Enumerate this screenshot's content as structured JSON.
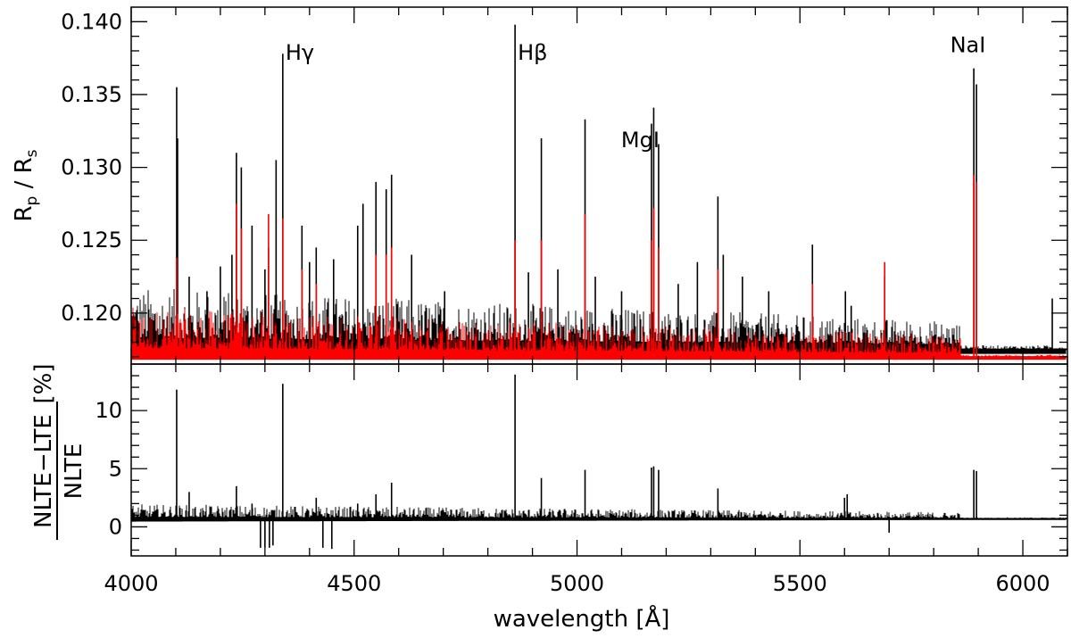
{
  "chart_data": [
    {
      "type": "line",
      "panel": "top",
      "ylabel": "R_p / R_s",
      "xlim": [
        4000,
        6100
      ],
      "ylim": [
        0.1165,
        0.141
      ],
      "x_ticks": [
        4000,
        4500,
        5000,
        5500,
        6000
      ],
      "y_ticks": [
        0.12,
        0.125,
        0.13,
        0.135,
        0.14
      ],
      "y_tick_labels": [
        "0.120",
        "0.125",
        "0.130",
        "0.135",
        "0.140"
      ],
      "colors": {
        "series_black": "#000000",
        "series_red": "#ff0000"
      },
      "baseline": {
        "black": 0.1175,
        "red": 0.117
      },
      "annotations": [
        {
          "text": "Hγ",
          "x": 4340,
          "y": 0.1385
        },
        {
          "text": "Hβ",
          "x": 4861,
          "y": 0.1385
        },
        {
          "text": "MgI",
          "x": 5183,
          "y": 0.1325
        },
        {
          "text": "NaI",
          "x": 5893,
          "y": 0.139
        }
      ],
      "series": [
        {
          "color": "black",
          "peaks": [
            [
              4102,
              0.1355
            ],
            [
              4104,
              0.132
            ],
            [
              4130,
              0.1225
            ],
            [
              4170,
              0.1215
            ],
            [
              4200,
              0.1232
            ],
            [
              4226,
              0.124
            ],
            [
              4236,
              0.131
            ],
            [
              4247,
              0.13
            ],
            [
              4271,
              0.126
            ],
            [
              4300,
              0.123
            ],
            [
              4308,
              0.1245
            ],
            [
              4325,
              0.1305
            ],
            [
              4340,
              0.1378
            ],
            [
              4383,
              0.126
            ],
            [
              4400,
              0.1235
            ],
            [
              4415,
              0.1245
            ],
            [
              4454,
              0.1237
            ],
            [
              4508,
              0.126
            ],
            [
              4520,
              0.1275
            ],
            [
              4549,
              0.129
            ],
            [
              4572,
              0.1285
            ],
            [
              4584,
              0.1295
            ],
            [
              4629,
              0.124
            ],
            [
              4703,
              0.1215
            ],
            [
              4861,
              0.1398
            ],
            [
              4891,
              0.1228
            ],
            [
              4920,
              0.132
            ],
            [
              4957,
              0.123
            ],
            [
              5018,
              0.1333
            ],
            [
              5041,
              0.1225
            ],
            [
              5100,
              0.1215
            ],
            [
              5167,
              0.133
            ],
            [
              5172,
              0.1341
            ],
            [
              5183,
              0.1316
            ],
            [
              5227,
              0.122
            ],
            [
              5270,
              0.1235
            ],
            [
              5316,
              0.128
            ],
            [
              5328,
              0.124
            ],
            [
              5371,
              0.1225
            ],
            [
              5430,
              0.1215
            ],
            [
              5528,
              0.1247
            ],
            [
              5602,
              0.1215
            ],
            [
              5615,
              0.1205
            ],
            [
              5690,
              0.1225
            ],
            [
              5890,
              0.1368
            ],
            [
              5896,
              0.1357
            ],
            [
              6066,
              0.121
            ]
          ]
        },
        {
          "color": "red",
          "peaks": [
            [
              4102,
              0.1238
            ],
            [
              4236,
              0.1275
            ],
            [
              4247,
              0.1258
            ],
            [
              4308,
              0.1268
            ],
            [
              4340,
              0.1265
            ],
            [
              4383,
              0.123
            ],
            [
              4415,
              0.122
            ],
            [
              4549,
              0.124
            ],
            [
              4572,
              0.124
            ],
            [
              4584,
              0.1245
            ],
            [
              4861,
              0.125
            ],
            [
              4920,
              0.125
            ],
            [
              5018,
              0.1268
            ],
            [
              5167,
              0.125
            ],
            [
              5172,
              0.1272
            ],
            [
              5183,
              0.1245
            ],
            [
              5316,
              0.123
            ],
            [
              5528,
              0.122
            ],
            [
              5690,
              0.1235
            ],
            [
              5890,
              0.1295
            ],
            [
              5896,
              0.129
            ]
          ]
        }
      ]
    },
    {
      "type": "line",
      "panel": "bottom",
      "xlabel": "wavelength [Å]",
      "ylabel": "(NLTE−LTE)/NLTE [%]",
      "ylabel_parts": {
        "numerator": "NLTE−LTE",
        "denominator": "NLTE",
        "unit": "[%]"
      },
      "xlim": [
        4000,
        6100
      ],
      "ylim": [
        -2.5,
        14
      ],
      "x_ticks": [
        4000,
        4500,
        5000,
        5500,
        6000
      ],
      "y_ticks": [
        0,
        5,
        10
      ],
      "y_tick_labels": [
        "0",
        "5",
        "10"
      ],
      "baseline": 0.7,
      "series": [
        {
          "color": "black",
          "peaks": [
            [
              4102,
              11.8
            ],
            [
              4130,
              3.0
            ],
            [
              4236,
              3.5
            ],
            [
              4271,
              2.0
            ],
            [
              4340,
              12.3
            ],
            [
              4415,
              2.5
            ],
            [
              4508,
              2.0
            ],
            [
              4549,
              2.8
            ],
            [
              4584,
              3.8
            ],
            [
              4861,
              13.1
            ],
            [
              4920,
              4.2
            ],
            [
              5018,
              4.9
            ],
            [
              5167,
              5.1
            ],
            [
              5172,
              5.2
            ],
            [
              5183,
              4.9
            ],
            [
              5316,
              3.3
            ],
            [
              5600,
              2.5
            ],
            [
              5606,
              2.8
            ],
            [
              5890,
              4.9
            ],
            [
              5896,
              4.8
            ]
          ],
          "dips": [
            [
              4290,
              -1.8
            ],
            [
              4300,
              -1.8
            ],
            [
              4310,
              -1.8
            ],
            [
              4318,
              -1.6
            ],
            [
              4430,
              -1.8
            ],
            [
              4450,
              -1.9
            ],
            [
              5700,
              -0.5
            ]
          ]
        }
      ]
    }
  ]
}
